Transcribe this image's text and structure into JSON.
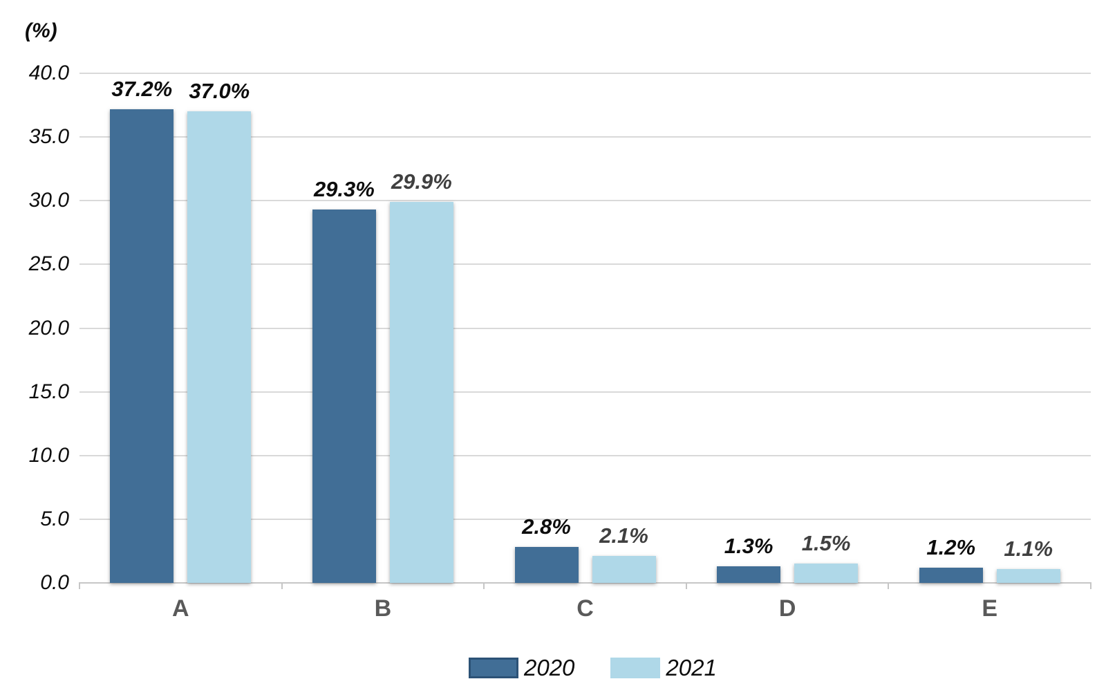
{
  "unit_label": "(%)",
  "chart_data": {
    "type": "bar",
    "title": "",
    "ylabel": "(%)",
    "xlabel": "",
    "categories": [
      "A",
      "B",
      "C",
      "D",
      "E"
    ],
    "series": [
      {
        "name": "2020",
        "color": "#416E96",
        "values": [
          37.2,
          29.3,
          2.8,
          1.3,
          1.2
        ],
        "labels": [
          "37.2%",
          "29.3%",
          "2.8%",
          "1.3%",
          "1.2%"
        ],
        "label_colors": [
          "#0d0d0d",
          "#0d0d0d",
          "#0d0d0d",
          "#0d0d0d",
          "#0d0d0d"
        ]
      },
      {
        "name": "2021",
        "color": "#AFD8E8",
        "values": [
          37.0,
          29.9,
          2.1,
          1.5,
          1.1
        ],
        "labels": [
          "37.0%",
          "29.9%",
          "2.1%",
          "1.5%",
          "1.1%"
        ],
        "label_colors": [
          "#0d0d0d",
          "#404040",
          "#404040",
          "#404040",
          "#404040"
        ]
      }
    ],
    "ylim": [
      0,
      40
    ],
    "ytick_step": 5,
    "yticks": [
      "0.0",
      "5.0",
      "10.0",
      "15.0",
      "20.0",
      "25.0",
      "30.0",
      "35.0",
      "40.0"
    ],
    "grid": true,
    "legend_position": "bottom"
  },
  "legend": {
    "items": [
      {
        "label": "2020",
        "swatch_color": "#416E96",
        "swatch_border": "#2C5276"
      },
      {
        "label": "2021",
        "swatch_color": "#AFD8E8",
        "swatch_border": "#AFD8E8"
      }
    ]
  },
  "colors": {
    "background": "#FFFFFF",
    "grid": "#D9D9D9",
    "axis": "#C6C6C6",
    "category_label": "#595959",
    "tick_label": "#0d0d0d",
    "series_2020": "#416E96",
    "series_2021": "#AFD8E8"
  }
}
